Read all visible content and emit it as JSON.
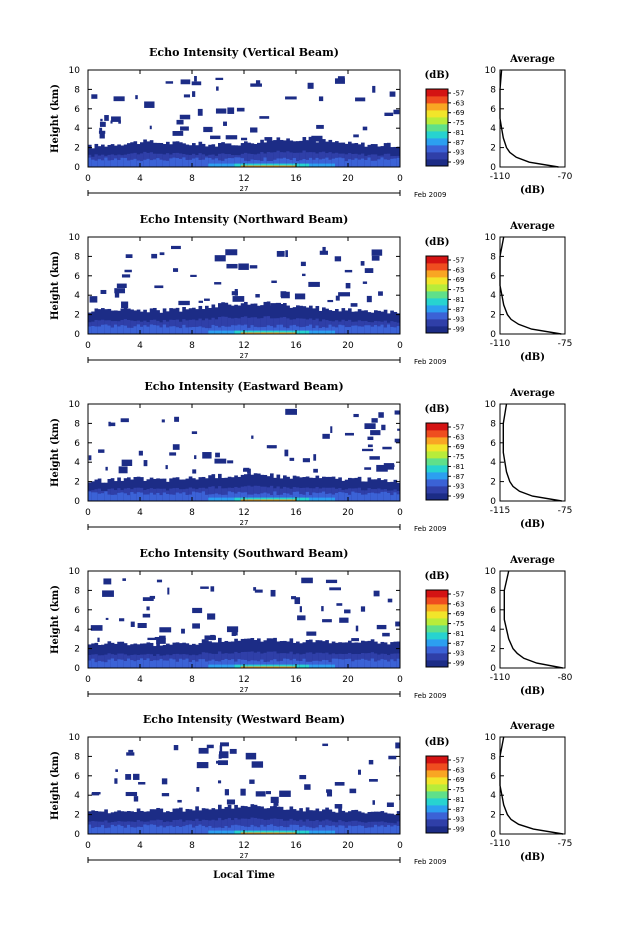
{
  "figure": {
    "ylabel": "Height (km)",
    "xlabel": "Local Time",
    "date_label": "27",
    "month_label": "Feb 2009",
    "avg_title": "Average",
    "avg_xlabel": "(dB)",
    "cb_unit": "(dB)",
    "cb_ticks": [
      "-57",
      "-63",
      "-69",
      "-75",
      "-81",
      "-87",
      "-93",
      "-99"
    ],
    "cb_colors": [
      "#1c2c86",
      "#2f3fa8",
      "#3b62d6",
      "#2c9ff0",
      "#27d3d0",
      "#5fe08a",
      "#b8ec3a",
      "#f2e52a",
      "#f9a623",
      "#ef4d1f",
      "#d41313"
    ],
    "x_ticks": [
      "0",
      "4",
      "8",
      "12",
      "16",
      "20",
      "0"
    ],
    "y_ticks": [
      "0",
      "2",
      "4",
      "6",
      "8",
      "10"
    ],
    "avg_y_ticks": [
      "0",
      "2",
      "4",
      "6",
      "8",
      "10"
    ]
  },
  "chart_data": [
    {
      "type": "heatmap",
      "title": "Echo Intensity (Vertical Beam)",
      "x_range": [
        0,
        24
      ],
      "y_range": [
        0,
        10
      ],
      "xlabel": "Local Time",
      "ylabel": "Height (km)",
      "colorbar_unit": "(dB)",
      "colorbar_range": [
        -99,
        -57
      ],
      "layer_tops_km": [
        2.1,
        2.4,
        2.6,
        2.5,
        2.4,
        2.3,
        2.5,
        2.8,
        2.9,
        2.7,
        2.4,
        2.3,
        2.2
      ],
      "avg_profile": {
        "title": "Average",
        "xlabel": "(dB)",
        "xlim": [
          -110,
          -70
        ],
        "x_ticks": [
          "-110",
          "-70"
        ],
        "height_km": [
          0,
          0.5,
          1,
          1.5,
          2,
          3,
          4,
          5,
          6,
          8,
          10
        ],
        "db": [
          -74,
          -92,
          -100,
          -104,
          -106,
          -108,
          -109,
          -110,
          -110,
          -110,
          -109
        ]
      }
    },
    {
      "type": "heatmap",
      "title": "Echo Intensity (Northward Beam)",
      "x_range": [
        0,
        24
      ],
      "y_range": [
        0,
        10
      ],
      "xlabel": "Local Time",
      "ylabel": "Height (km)",
      "colorbar_unit": "(dB)",
      "colorbar_range": [
        -99,
        -57
      ],
      "layer_tops_km": [
        2.4,
        2.6,
        2.5,
        2.4,
        2.7,
        3.0,
        3.2,
        3.1,
        2.8,
        2.6,
        2.5,
        2.4,
        2.3
      ],
      "avg_profile": {
        "title": "Average",
        "xlabel": "(dB)",
        "xlim": [
          -110,
          -75
        ],
        "x_ticks": [
          "-110",
          "-75"
        ],
        "height_km": [
          0,
          0.5,
          1,
          1.5,
          2,
          3,
          4,
          5,
          6,
          8,
          10
        ],
        "db": [
          -77,
          -93,
          -100,
          -104,
          -106,
          -108,
          -109,
          -110,
          -110,
          -110,
          -108
        ]
      }
    },
    {
      "type": "heatmap",
      "title": "Echo Intensity (Eastward Beam)",
      "x_range": [
        0,
        24
      ],
      "y_range": [
        0,
        10
      ],
      "xlabel": "Local Time",
      "ylabel": "Height (km)",
      "colorbar_unit": "(dB)",
      "colorbar_range": [
        -99,
        -57
      ],
      "layer_tops_km": [
        2.0,
        2.2,
        2.3,
        2.2,
        2.4,
        2.6,
        2.7,
        2.6,
        2.5,
        2.4,
        2.3,
        2.2,
        2.1
      ],
      "avg_profile": {
        "title": "Average",
        "xlabel": "(dB)",
        "xlim": [
          -115,
          -75
        ],
        "x_ticks": [
          "-115",
          "-75"
        ],
        "height_km": [
          0,
          0.5,
          1,
          1.5,
          2,
          3,
          4,
          5,
          6,
          8,
          10
        ],
        "db": [
          -77,
          -95,
          -103,
          -107,
          -109,
          -111,
          -112,
          -113,
          -113,
          -113,
          -111
        ]
      }
    },
    {
      "type": "heatmap",
      "title": "Echo Intensity (Southward Beam)",
      "x_range": [
        0,
        24
      ],
      "y_range": [
        0,
        10
      ],
      "xlabel": "Local Time",
      "ylabel": "Height (km)",
      "colorbar_unit": "(dB)",
      "colorbar_range": [
        -99,
        -57
      ],
      "layer_tops_km": [
        2.4,
        2.6,
        2.5,
        2.4,
        2.6,
        2.9,
        3.0,
        2.9,
        2.8,
        2.7,
        2.8,
        2.7,
        2.5
      ],
      "avg_profile": {
        "title": "Average",
        "xlabel": "(dB)",
        "xlim": [
          -110,
          -80
        ],
        "x_ticks": [
          "-110",
          "-80"
        ],
        "height_km": [
          0,
          0.5,
          1,
          1.5,
          2,
          3,
          4,
          5,
          6,
          8,
          10
        ],
        "db": [
          -81,
          -93,
          -99,
          -102,
          -104,
          -106,
          -107,
          -108,
          -108,
          -108,
          -106
        ]
      }
    },
    {
      "type": "heatmap",
      "title": "Echo Intensity (Westward Beam)",
      "x_range": [
        0,
        24
      ],
      "y_range": [
        0,
        10
      ],
      "xlabel": "Local Time",
      "ylabel": "Height (km)",
      "colorbar_unit": "(dB)",
      "colorbar_range": [
        -99,
        -57
      ],
      "layer_tops_km": [
        2.2,
        2.4,
        2.5,
        2.4,
        2.6,
        2.8,
        2.9,
        2.8,
        2.6,
        2.5,
        2.4,
        2.3,
        2.2
      ],
      "avg_profile": {
        "title": "Average",
        "xlabel": "(dB)",
        "xlim": [
          -110,
          -75
        ],
        "x_ticks": [
          "-110",
          "-75"
        ],
        "height_km": [
          0,
          0.5,
          1,
          1.5,
          2,
          3,
          4,
          5,
          6,
          8,
          10
        ],
        "db": [
          -76,
          -92,
          -100,
          -104,
          -106,
          -108,
          -109,
          -110,
          -110,
          -110,
          -108
        ]
      }
    }
  ]
}
